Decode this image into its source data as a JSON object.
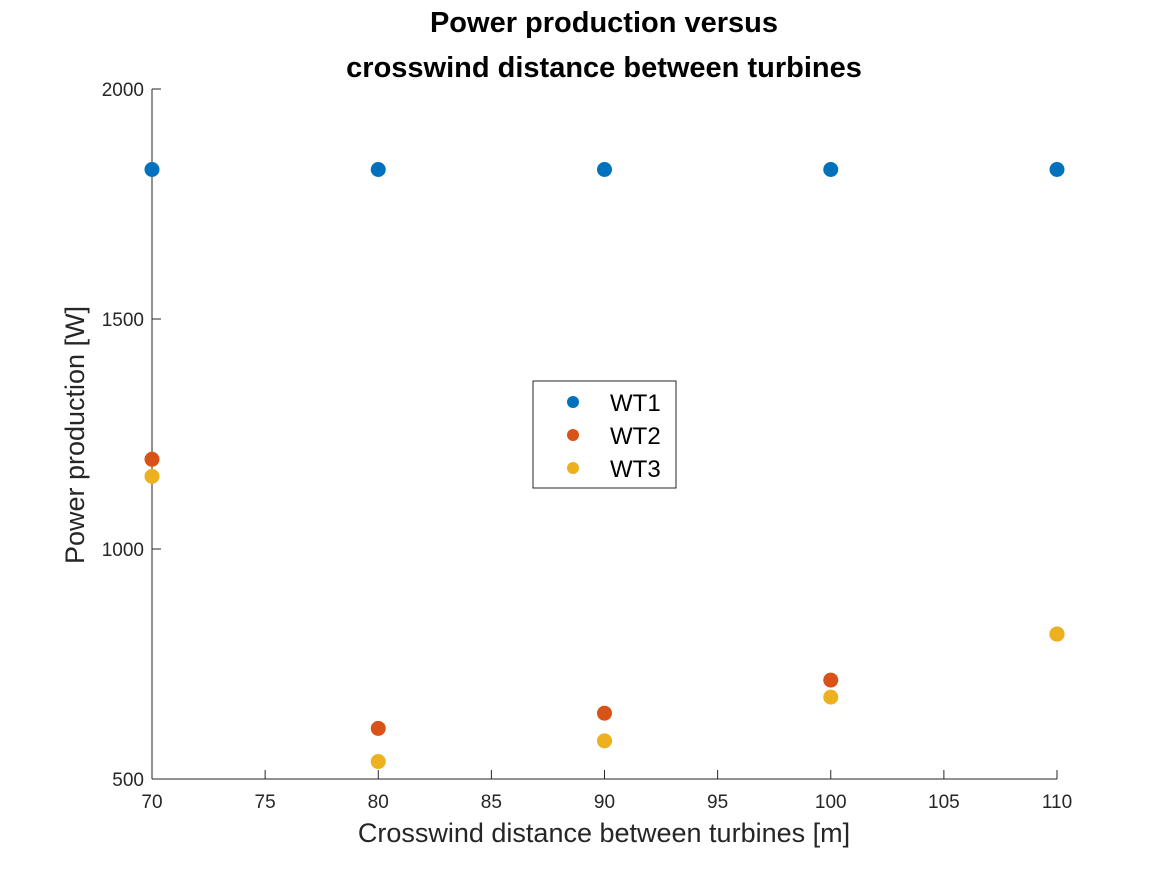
{
  "chart_data": {
    "type": "scatter",
    "title_lines": [
      "Power production versus",
      "crosswind distance between turbines"
    ],
    "xlabel": "Crosswind distance between turbines [m]",
    "ylabel": "Power production [W]",
    "xlim": [
      70,
      110
    ],
    "ylim": [
      500,
      2000
    ],
    "xticks": [
      70,
      75,
      80,
      85,
      90,
      95,
      100,
      105,
      110
    ],
    "yticks": [
      500,
      1000,
      1500,
      2000
    ],
    "grid": false,
    "legend_position": "center",
    "series": [
      {
        "name": "WT1",
        "color": "#0072BD",
        "x": [
          70,
          80,
          90,
          100,
          110
        ],
        "y": [
          1825,
          1825,
          1825,
          1825,
          1825
        ]
      },
      {
        "name": "WT2",
        "color": "#D95319",
        "x": [
          70,
          80,
          90,
          100,
          110
        ],
        "y": [
          1195,
          610,
          643,
          715,
          815
        ]
      },
      {
        "name": "WT3",
        "color": "#EDB120",
        "x": [
          70,
          80,
          90,
          100,
          110
        ],
        "y": [
          1158,
          538,
          583,
          678,
          815
        ]
      }
    ]
  }
}
